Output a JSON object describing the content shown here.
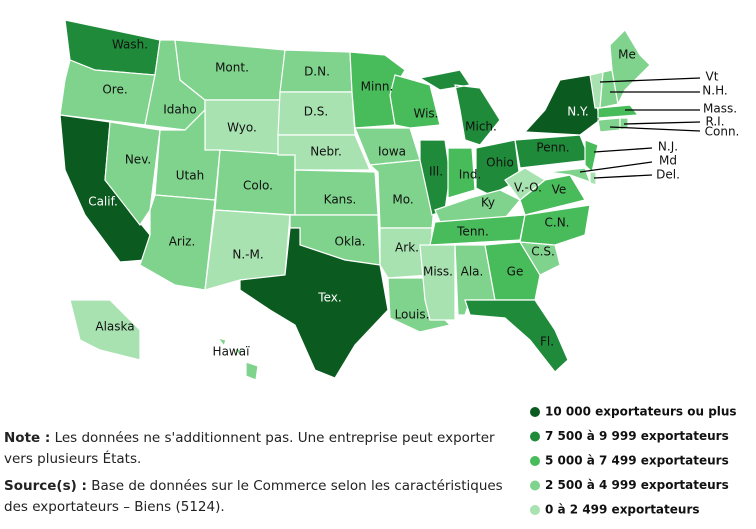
{
  "legend": [
    {
      "label": "10 000 exportateurs ou plus",
      "color": "#0b5a1f"
    },
    {
      "label": "7 500 à 9 999 exportateurs",
      "color": "#1f8b3a"
    },
    {
      "label": "5 000 à 7 499 exportateurs",
      "color": "#48bb5a"
    },
    {
      "label": "2 500 à 4 999 exportateurs",
      "color": "#7fd38c"
    },
    {
      "label": "0 à 2 499 exportateurs",
      "color": "#a9e2b1"
    }
  ],
  "states": [
    {
      "name": "Wash.",
      "color": "#1f8b3a"
    },
    {
      "name": "Ore.",
      "color": "#7fd38c"
    },
    {
      "name": "Calif.",
      "color": "#0b5a1f"
    },
    {
      "name": "Nev.",
      "color": "#7fd38c"
    },
    {
      "name": "Idaho",
      "color": "#7fd38c"
    },
    {
      "name": "Mont.",
      "color": "#7fd38c"
    },
    {
      "name": "Wyo.",
      "color": "#a9e2b1"
    },
    {
      "name": "Utah",
      "color": "#7fd38c"
    },
    {
      "name": "Ariz.",
      "color": "#7fd38c"
    },
    {
      "name": "Colo.",
      "color": "#7fd38c"
    },
    {
      "name": "N.-M.",
      "color": "#a9e2b1"
    },
    {
      "name": "D.N.",
      "color": "#7fd38c"
    },
    {
      "name": "D.S.",
      "color": "#a9e2b1"
    },
    {
      "name": "Nebr.",
      "color": "#a9e2b1"
    },
    {
      "name": "Kans.",
      "color": "#7fd38c"
    },
    {
      "name": "Okla.",
      "color": "#7fd38c"
    },
    {
      "name": "Tex.",
      "color": "#0b5a1f"
    },
    {
      "name": "Minn.",
      "color": "#48bb5a"
    },
    {
      "name": "Iowa",
      "color": "#7fd38c"
    },
    {
      "name": "Mo.",
      "color": "#7fd38c"
    },
    {
      "name": "Ark.",
      "color": "#a9e2b1"
    },
    {
      "name": "Louis.",
      "color": "#7fd38c"
    },
    {
      "name": "Wis.",
      "color": "#48bb5a"
    },
    {
      "name": "Ill.",
      "color": "#1f8b3a"
    },
    {
      "name": "Mich.",
      "color": "#1f8b3a"
    },
    {
      "name": "Ind.",
      "color": "#48bb5a"
    },
    {
      "name": "Ohio",
      "color": "#1f8b3a"
    },
    {
      "name": "Ky",
      "color": "#7fd38c"
    },
    {
      "name": "Tenn.",
      "color": "#48bb5a"
    },
    {
      "name": "Miss.",
      "color": "#a9e2b1"
    },
    {
      "name": "Ala.",
      "color": "#7fd38c"
    },
    {
      "name": "Ge",
      "color": "#48bb5a"
    },
    {
      "name": "Fl.",
      "color": "#1f8b3a"
    },
    {
      "name": "C.S.",
      "color": "#7fd38c"
    },
    {
      "name": "C.N.",
      "color": "#48bb5a"
    },
    {
      "name": "Ve",
      "color": "#48bb5a"
    },
    {
      "name": "V.-O.",
      "color": "#a9e2b1"
    },
    {
      "name": "Penn.",
      "color": "#1f8b3a"
    },
    {
      "name": "N.Y.",
      "color": "#0b5a1f"
    },
    {
      "name": "Md",
      "color": "#7fd38c"
    },
    {
      "name": "N.J.",
      "color": "#48bb5a"
    },
    {
      "name": "Del.",
      "color": "#a9e2b1"
    },
    {
      "name": "Conn.",
      "color": "#7fd38c"
    },
    {
      "name": "R.I.",
      "color": "#7fd38c"
    },
    {
      "name": "Mass.",
      "color": "#48bb5a"
    },
    {
      "name": "Vt",
      "color": "#a9e2b1"
    },
    {
      "name": "N.H.",
      "color": "#7fd38c"
    },
    {
      "name": "Me",
      "color": "#7fd38c"
    },
    {
      "name": "Alaska",
      "color": "#a9e2b1"
    },
    {
      "name": "Hawaï",
      "color": "#7fd38c"
    }
  ],
  "note": {
    "label": "Note :",
    "text": "Les données ne s'additionnent pas. Une entreprise peut exporter vers plusieurs États."
  },
  "source": {
    "label": "Source(s) :",
    "text": "Base de données sur le Commerce selon les caractéristiques des exportateurs – Biens (5124)."
  }
}
